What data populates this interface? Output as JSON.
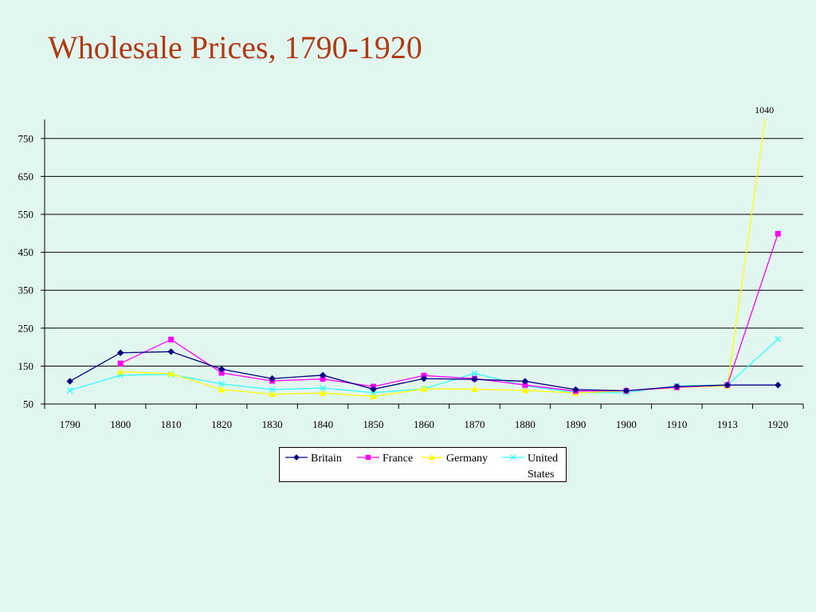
{
  "title": "Wholesale Prices, 1790-1920",
  "colors": {
    "background": "#e1f6ef",
    "title": "#b03a16"
  },
  "chart_data": {
    "type": "line",
    "x": [
      "1790",
      "1800",
      "1810",
      "1820",
      "1830",
      "1840",
      "1850",
      "1860",
      "1870",
      "1880",
      "1890",
      "1900",
      "1910",
      "1913",
      "1920"
    ],
    "ylim": [
      50,
      800
    ],
    "yticks": [
      50,
      150,
      250,
      350,
      450,
      550,
      650,
      750
    ],
    "grid": true,
    "legend": "bottom",
    "series": [
      {
        "name": "Britain",
        "color": "#000080",
        "marker": "diamond",
        "values": [
          110,
          185,
          188,
          142,
          117,
          126,
          89,
          117,
          115,
          110,
          88,
          85,
          96,
          100,
          100
        ]
      },
      {
        "name": "France",
        "color": "#ff00ff",
        "marker": "square",
        "values": [
          null,
          157,
          220,
          132,
          111,
          116,
          96,
          125,
          117,
          100,
          84,
          85,
          94,
          100,
          499
        ]
      },
      {
        "name": "Germany",
        "color": "#ffff00",
        "marker": "triangle",
        "values": [
          null,
          135,
          130,
          88,
          76,
          79,
          70,
          90,
          89,
          86,
          79,
          85,
          93,
          98,
          1040
        ]
      },
      {
        "name": "United States",
        "color": "#33ffff",
        "marker": "x",
        "values": [
          86,
          126,
          128,
          103,
          88,
          92,
          80,
          90,
          131,
          98,
          80,
          80,
          98,
          100,
          221
        ]
      }
    ],
    "annotations": [
      {
        "label": "1040"
      }
    ]
  }
}
